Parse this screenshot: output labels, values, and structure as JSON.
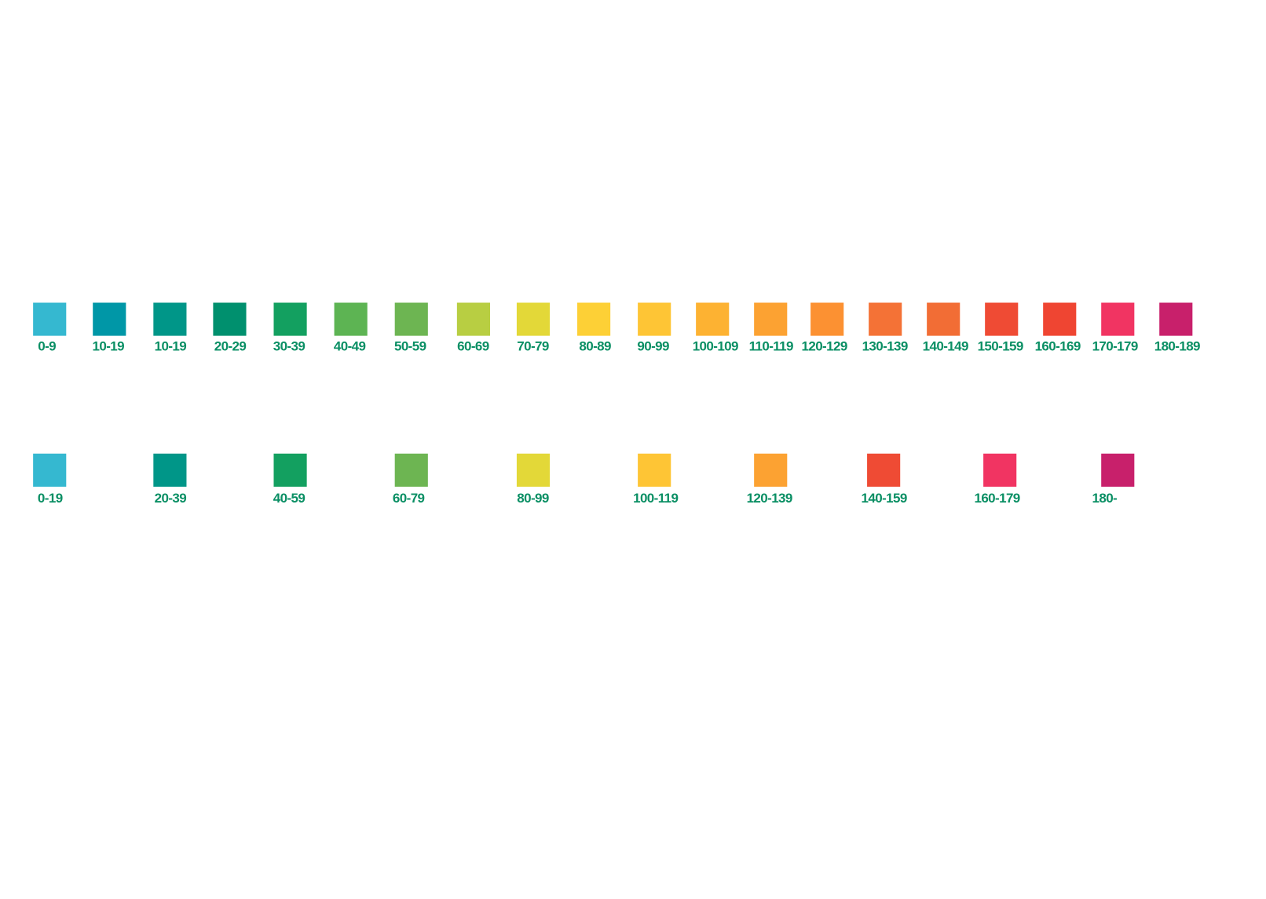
{
  "rows": [
    {
      "items": [
        {
          "label": "0-9",
          "color": "#35b8d0"
        },
        {
          "label": "10-19",
          "color": "#0097a7"
        },
        {
          "label": "10-19",
          "color": "#009688"
        },
        {
          "label": "20-29",
          "color": "#00906e"
        },
        {
          "label": "30-39",
          "color": "#13a060"
        },
        {
          "label": "40-49",
          "color": "#5db453"
        },
        {
          "label": "50-59",
          "color": "#6db552"
        },
        {
          "label": "60-69",
          "color": "#b8ce42"
        },
        {
          "label": "70-79",
          "color": "#e3d838"
        },
        {
          "label": "80-89",
          "color": "#fdd036"
        },
        {
          "label": "90-99",
          "color": "#fec535"
        },
        {
          "label": "100-109",
          "color": "#fdb232"
        },
        {
          "label": "110-119",
          "color": "#fca232"
        },
        {
          "label": "120-129",
          "color": "#fc9132"
        },
        {
          "label": "130-139",
          "color": "#f47236"
        },
        {
          "label": "140-149",
          "color": "#f26d35"
        },
        {
          "label": "150-159",
          "color": "#ef4b34"
        },
        {
          "label": "160-169",
          "color": "#ef4532"
        },
        {
          "label": "170-179",
          "color": "#f13462"
        },
        {
          "label": "180-189",
          "color": "#c8206b"
        }
      ]
    },
    {
      "items": [
        {
          "label": "0-19",
          "color": "#35b8d0"
        },
        {
          "label": "20-39",
          "color": "#009688"
        },
        {
          "label": "40-59",
          "color": "#13a060"
        },
        {
          "label": "60-79",
          "color": "#6db552"
        },
        {
          "label": "80-99",
          "color": "#e3d838"
        },
        {
          "label": "100-119",
          "color": "#fec535"
        },
        {
          "label": "120-139",
          "color": "#fca232"
        },
        {
          "label": "140-159",
          "color": "#ef4b34"
        },
        {
          "label": "160-179",
          "color": "#f13462"
        },
        {
          "label": "180-",
          "color": "#c8206b"
        }
      ]
    }
  ]
}
